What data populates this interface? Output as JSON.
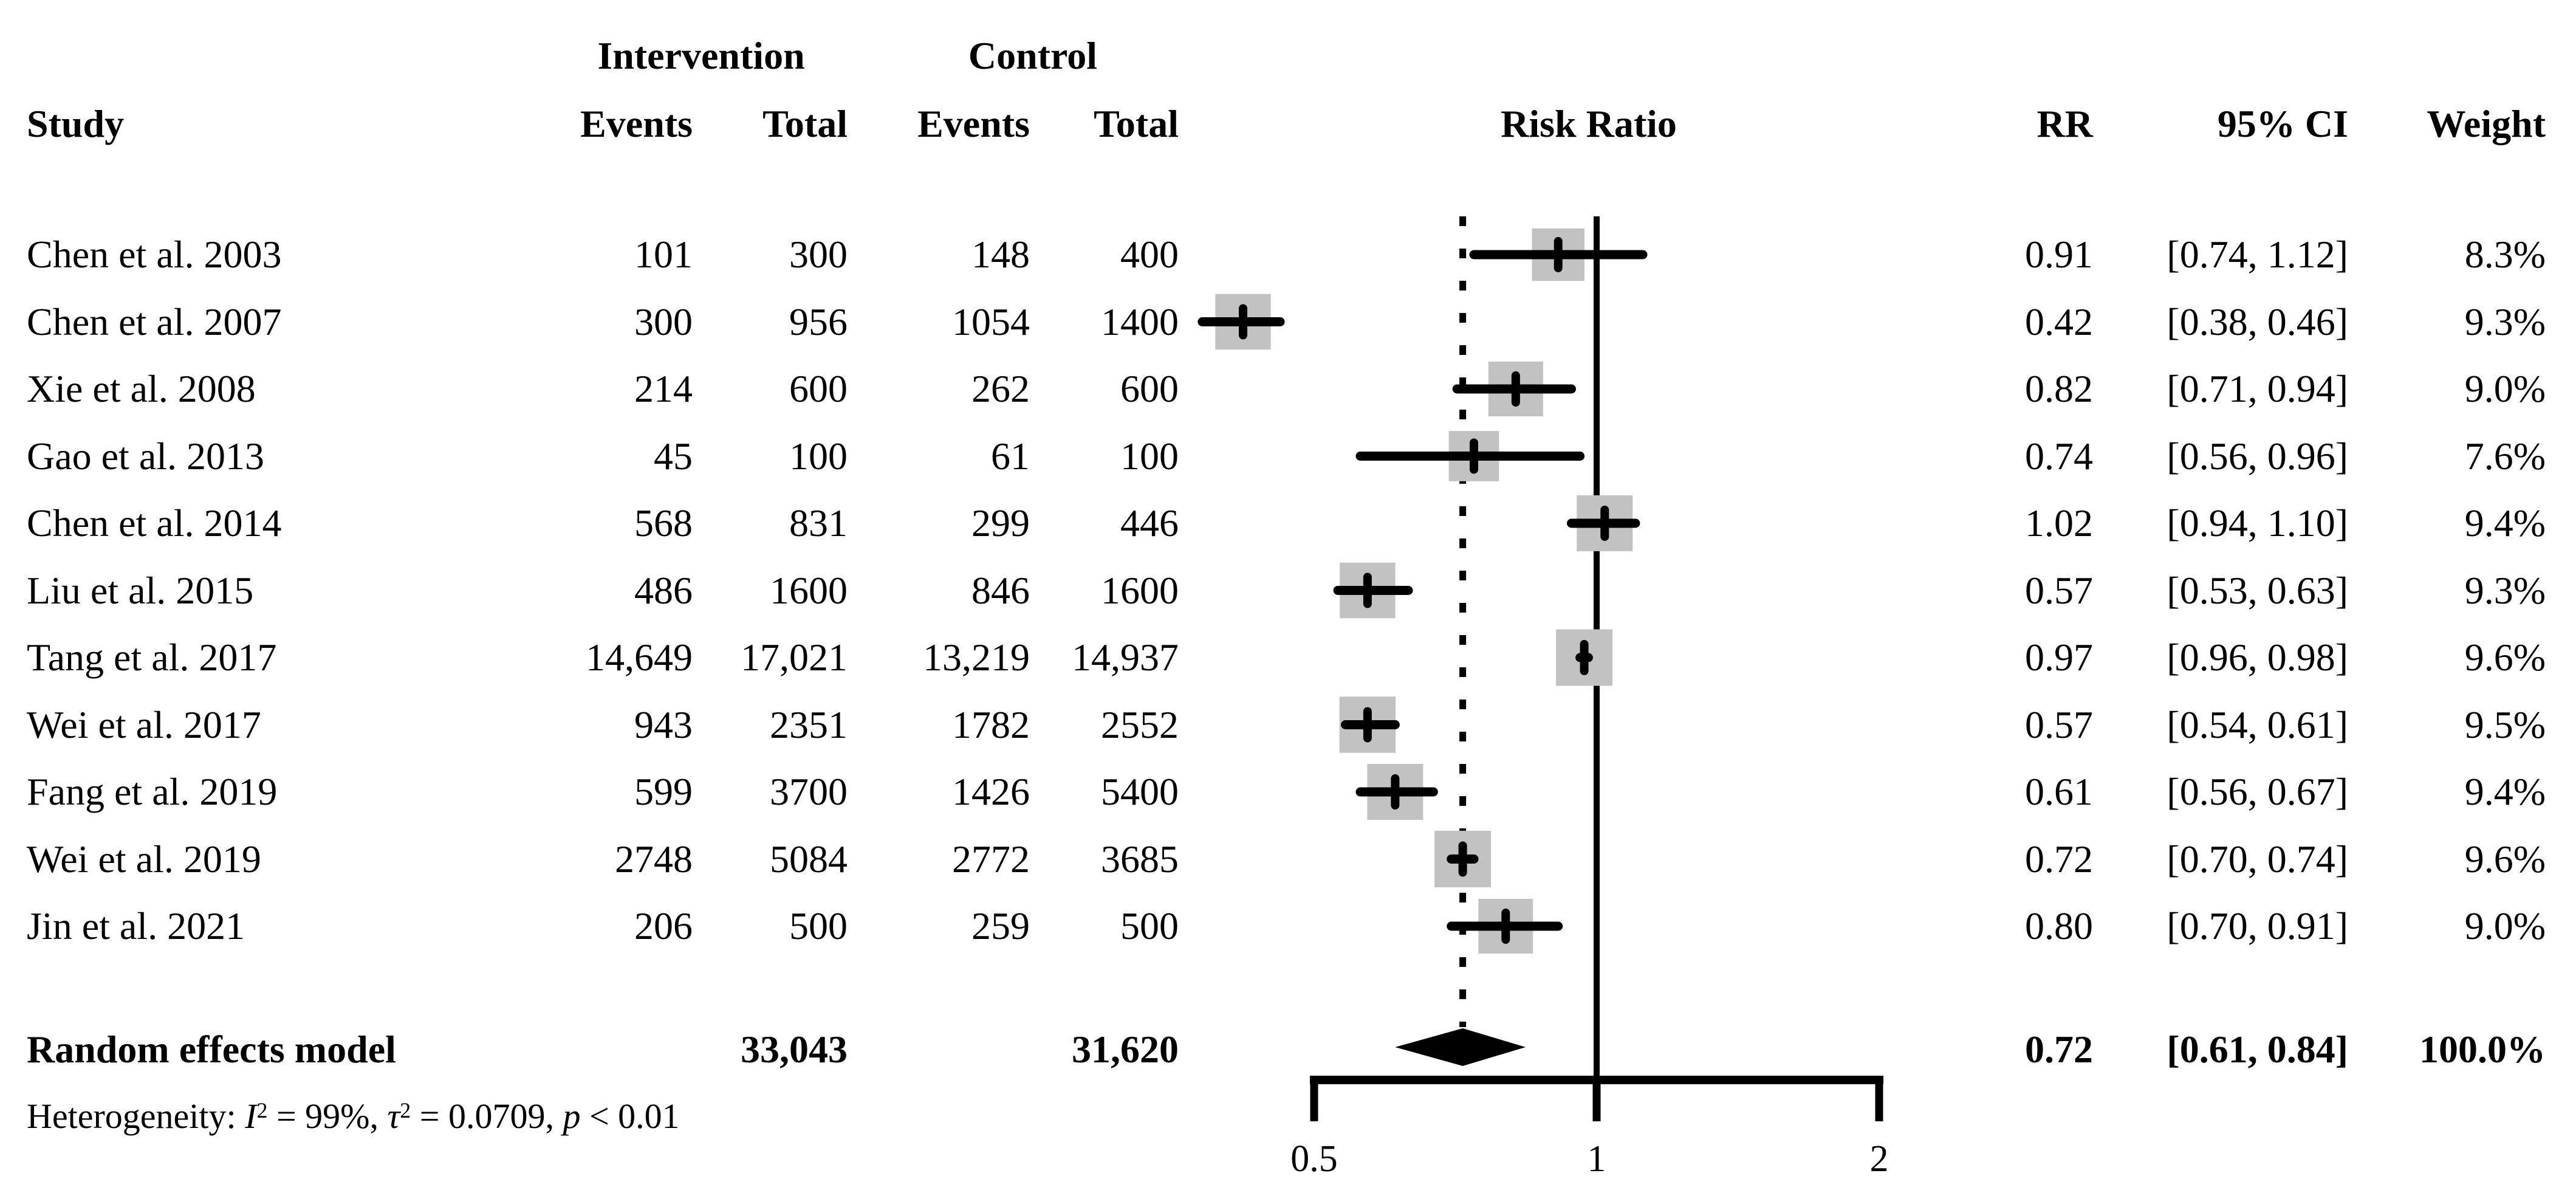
{
  "table": {
    "headers": {
      "group_intervention": "Intervention",
      "group_control": "Control",
      "study": "Study",
      "intervention_events": "Events",
      "intervention_total": "Total",
      "control_events": "Events",
      "control_total": "Total",
      "risk_ratio": "Risk Ratio",
      "rr": "RR",
      "ci": "95% CI",
      "weight": "Weight"
    }
  },
  "chart_data": {
    "type": "forest",
    "effect_measure": "Risk Ratio",
    "x_axis": {
      "scale": "log",
      "ticks": [
        0.5,
        1,
        2
      ],
      "tick_labels": [
        "0.5",
        "1",
        "2"
      ],
      "null_value": 1,
      "range": [
        0.5,
        2
      ]
    },
    "colors": {
      "square": "#c2c2c2",
      "line": "#000000",
      "diamond": "#000000"
    },
    "studies": [
      {
        "name": "Chen et al. 2003",
        "int_events": "101",
        "int_total": "300",
        "ctrl_events": "148",
        "ctrl_total": "400",
        "rr_label": "0.91",
        "ci_label": "[0.74, 1.12]",
        "weight_label": "8.3%",
        "rr": 0.91,
        "ci_low": 0.74,
        "ci_high": 1.12,
        "weight_pct": 8.3
      },
      {
        "name": "Chen et al. 2007",
        "int_events": "300",
        "int_total": "956",
        "ctrl_events": "1054",
        "ctrl_total": "1400",
        "rr_label": "0.42",
        "ci_label": "[0.38, 0.46]",
        "weight_label": "9.3%",
        "rr": 0.42,
        "ci_low": 0.38,
        "ci_high": 0.46,
        "weight_pct": 9.3
      },
      {
        "name": "Xie et al. 2008",
        "int_events": "214",
        "int_total": "600",
        "ctrl_events": "262",
        "ctrl_total": "600",
        "rr_label": "0.82",
        "ci_label": "[0.71, 0.94]",
        "weight_label": "9.0%",
        "rr": 0.82,
        "ci_low": 0.71,
        "ci_high": 0.94,
        "weight_pct": 9.0
      },
      {
        "name": "Gao et al. 2013",
        "int_events": "45",
        "int_total": "100",
        "ctrl_events": "61",
        "ctrl_total": "100",
        "rr_label": "0.74",
        "ci_label": "[0.56, 0.96]",
        "weight_label": "7.6%",
        "rr": 0.74,
        "ci_low": 0.56,
        "ci_high": 0.96,
        "weight_pct": 7.6
      },
      {
        "name": "Chen et al. 2014",
        "int_events": "568",
        "int_total": "831",
        "ctrl_events": "299",
        "ctrl_total": "446",
        "rr_label": "1.02",
        "ci_label": "[0.94, 1.10]",
        "weight_label": "9.4%",
        "rr": 1.02,
        "ci_low": 0.94,
        "ci_high": 1.1,
        "weight_pct": 9.4
      },
      {
        "name": "Liu et al. 2015",
        "int_events": "486",
        "int_total": "1600",
        "ctrl_events": "846",
        "ctrl_total": "1600",
        "rr_label": "0.57",
        "ci_label": "[0.53, 0.63]",
        "weight_label": "9.3%",
        "rr": 0.57,
        "ci_low": 0.53,
        "ci_high": 0.63,
        "weight_pct": 9.3
      },
      {
        "name": "Tang et al. 2017",
        "int_events": "14,649",
        "int_total": "17,021",
        "ctrl_events": "13,219",
        "ctrl_total": "14,937",
        "rr_label": "0.97",
        "ci_label": "[0.96, 0.98]",
        "weight_label": "9.6%",
        "rr": 0.97,
        "ci_low": 0.96,
        "ci_high": 0.98,
        "weight_pct": 9.6
      },
      {
        "name": "Wei et al. 2017",
        "int_events": "943",
        "int_total": "2351",
        "ctrl_events": "1782",
        "ctrl_total": "2552",
        "rr_label": "0.57",
        "ci_label": "[0.54, 0.61]",
        "weight_label": "9.5%",
        "rr": 0.57,
        "ci_low": 0.54,
        "ci_high": 0.61,
        "weight_pct": 9.5
      },
      {
        "name": "Fang et al. 2019",
        "int_events": "599",
        "int_total": "3700",
        "ctrl_events": "1426",
        "ctrl_total": "5400",
        "rr_label": "0.61",
        "ci_label": "[0.56, 0.67]",
        "weight_label": "9.4%",
        "rr": 0.61,
        "ci_low": 0.56,
        "ci_high": 0.67,
        "weight_pct": 9.4
      },
      {
        "name": "Wei et al. 2019",
        "int_events": "2748",
        "int_total": "5084",
        "ctrl_events": "2772",
        "ctrl_total": "3685",
        "rr_label": "0.72",
        "ci_label": "[0.70, 0.74]",
        "weight_label": "9.6%",
        "rr": 0.72,
        "ci_low": 0.7,
        "ci_high": 0.74,
        "weight_pct": 9.6
      },
      {
        "name": "Jin et al. 2021",
        "int_events": "206",
        "int_total": "500",
        "ctrl_events": "259",
        "ctrl_total": "500",
        "rr_label": "0.80",
        "ci_label": "[0.70, 0.91]",
        "weight_label": "9.0%",
        "rr": 0.8,
        "ci_low": 0.7,
        "ci_high": 0.91,
        "weight_pct": 9.0
      }
    ],
    "pooled": {
      "name": "Random effects model",
      "int_total": "33,043",
      "ctrl_total": "31,620",
      "rr_label": "0.72",
      "ci_label": "[0.61, 0.84]",
      "weight_label": "100.0%",
      "rr": 0.72,
      "ci_low": 0.61,
      "ci_high": 0.84,
      "weight_pct": 100.0
    },
    "heterogeneity": {
      "prefix": "Heterogeneity: ",
      "i_symbol": "I",
      "i_sup": "2",
      "i_text": " = 99%, ",
      "tau_symbol": "τ",
      "tau_sup": "2",
      "tau_text": " = 0.0709, ",
      "p_symbol": "p",
      "p_text": " < 0.01"
    }
  }
}
